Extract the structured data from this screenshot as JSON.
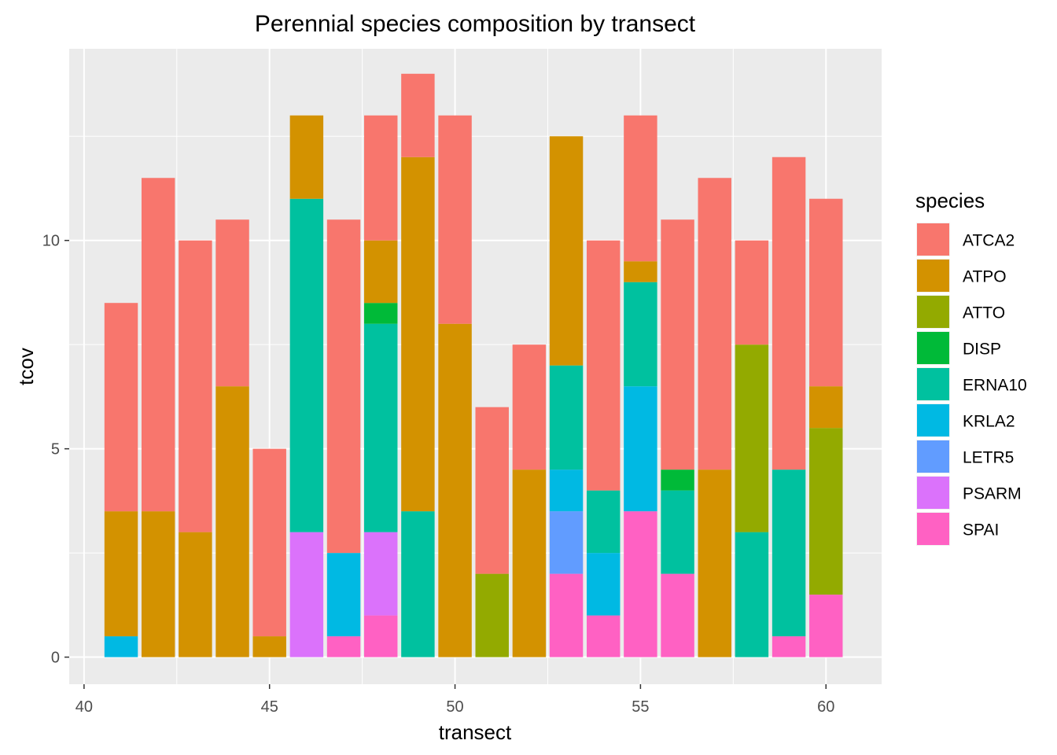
{
  "chart_data": {
    "type": "bar",
    "stacked": true,
    "title": "Perennial species composition by transect",
    "xlabel": "transect",
    "ylabel": "tcov",
    "xlim": [
      39.6,
      61.5
    ],
    "ylim": [
      -0.65,
      14.6
    ],
    "x_ticks": [
      40,
      45,
      50,
      55,
      60
    ],
    "y_ticks": [
      0,
      5,
      10
    ],
    "grid": true,
    "legend": {
      "title": "species",
      "position": "right"
    },
    "species": [
      {
        "name": "ATCA2",
        "color": "#F8766D"
      },
      {
        "name": "ATPO",
        "color": "#D39200"
      },
      {
        "name": "ATTO",
        "color": "#93AA00"
      },
      {
        "name": "DISP",
        "color": "#00BA38"
      },
      {
        "name": "ERNA10",
        "color": "#00C19F"
      },
      {
        "name": "KRLA2",
        "color": "#00B9E3"
      },
      {
        "name": "LETR5",
        "color": "#619CFF"
      },
      {
        "name": "PSARM",
        "color": "#DB72FB"
      },
      {
        "name": "SPAI",
        "color": "#FF61C3"
      }
    ],
    "bars": [
      {
        "transect": 41,
        "segments": [
          {
            "species": "KRLA2",
            "value": 0.5
          },
          {
            "species": "ATPO",
            "value": 3
          },
          {
            "species": "ATCA2",
            "value": 5
          }
        ]
      },
      {
        "transect": 42,
        "segments": [
          {
            "species": "ATPO",
            "value": 3.5
          },
          {
            "species": "ATCA2",
            "value": 8
          }
        ]
      },
      {
        "transect": 43,
        "segments": [
          {
            "species": "ATPO",
            "value": 3
          },
          {
            "species": "ATCA2",
            "value": 7
          }
        ]
      },
      {
        "transect": 44,
        "segments": [
          {
            "species": "ATPO",
            "value": 6.5
          },
          {
            "species": "ATCA2",
            "value": 4
          }
        ]
      },
      {
        "transect": 45,
        "segments": [
          {
            "species": "ATPO",
            "value": 0.5
          },
          {
            "species": "ATCA2",
            "value": 4.5
          }
        ]
      },
      {
        "transect": 46,
        "segments": [
          {
            "species": "PSARM",
            "value": 3
          },
          {
            "species": "ERNA10",
            "value": 8
          },
          {
            "species": "ATPO",
            "value": 2
          }
        ]
      },
      {
        "transect": 47,
        "segments": [
          {
            "species": "SPAI",
            "value": 0.5
          },
          {
            "species": "KRLA2",
            "value": 2
          },
          {
            "species": "ATCA2",
            "value": 8
          }
        ]
      },
      {
        "transect": 48,
        "segments": [
          {
            "species": "SPAI",
            "value": 1
          },
          {
            "species": "PSARM",
            "value": 2
          },
          {
            "species": "ERNA10",
            "value": 5
          },
          {
            "species": "DISP",
            "value": 0.5
          },
          {
            "species": "ATPO",
            "value": 1.5
          },
          {
            "species": "ATCA2",
            "value": 3
          }
        ]
      },
      {
        "transect": 49,
        "segments": [
          {
            "species": "ERNA10",
            "value": 3.5
          },
          {
            "species": "ATPO",
            "value": 8.5
          },
          {
            "species": "ATCA2",
            "value": 2
          }
        ]
      },
      {
        "transect": 50,
        "segments": [
          {
            "species": "ATPO",
            "value": 8
          },
          {
            "species": "ATCA2",
            "value": 5
          }
        ]
      },
      {
        "transect": 51,
        "segments": [
          {
            "species": "ATTO",
            "value": 2
          },
          {
            "species": "ATCA2",
            "value": 4
          }
        ]
      },
      {
        "transect": 52,
        "segments": [
          {
            "species": "ATPO",
            "value": 4.5
          },
          {
            "species": "ATCA2",
            "value": 3
          }
        ]
      },
      {
        "transect": 53,
        "segments": [
          {
            "species": "SPAI",
            "value": 2
          },
          {
            "species": "LETR5",
            "value": 1.5
          },
          {
            "species": "KRLA2",
            "value": 1
          },
          {
            "species": "ERNA10",
            "value": 2.5
          },
          {
            "species": "ATPO",
            "value": 5.5
          }
        ]
      },
      {
        "transect": 54,
        "segments": [
          {
            "species": "SPAI",
            "value": 1
          },
          {
            "species": "KRLA2",
            "value": 1.5
          },
          {
            "species": "ERNA10",
            "value": 1.5
          },
          {
            "species": "ATCA2",
            "value": 6
          }
        ]
      },
      {
        "transect": 55,
        "segments": [
          {
            "species": "SPAI",
            "value": 3.5
          },
          {
            "species": "KRLA2",
            "value": 3
          },
          {
            "species": "ERNA10",
            "value": 2.5
          },
          {
            "species": "ATPO",
            "value": 0.5
          },
          {
            "species": "ATCA2",
            "value": 3.5
          }
        ]
      },
      {
        "transect": 56,
        "segments": [
          {
            "species": "SPAI",
            "value": 2
          },
          {
            "species": "ERNA10",
            "value": 2
          },
          {
            "species": "DISP",
            "value": 0.5
          },
          {
            "species": "ATCA2",
            "value": 6
          }
        ]
      },
      {
        "transect": 57,
        "segments": [
          {
            "species": "ATPO",
            "value": 4.5
          },
          {
            "species": "ATCA2",
            "value": 7
          }
        ]
      },
      {
        "transect": 58,
        "segments": [
          {
            "species": "ERNA10",
            "value": 3
          },
          {
            "species": "ATTO",
            "value": 4.5
          },
          {
            "species": "ATCA2",
            "value": 2.5
          }
        ]
      },
      {
        "transect": 59,
        "segments": [
          {
            "species": "SPAI",
            "value": 0.5
          },
          {
            "species": "ERNA10",
            "value": 4
          },
          {
            "species": "ATCA2",
            "value": 7.5
          }
        ]
      },
      {
        "transect": 60,
        "segments": [
          {
            "species": "SPAI",
            "value": 1.5
          },
          {
            "species": "ATTO",
            "value": 4
          },
          {
            "species": "ATPO",
            "value": 1
          },
          {
            "species": "ATCA2",
            "value": 4.5
          }
        ]
      }
    ]
  }
}
